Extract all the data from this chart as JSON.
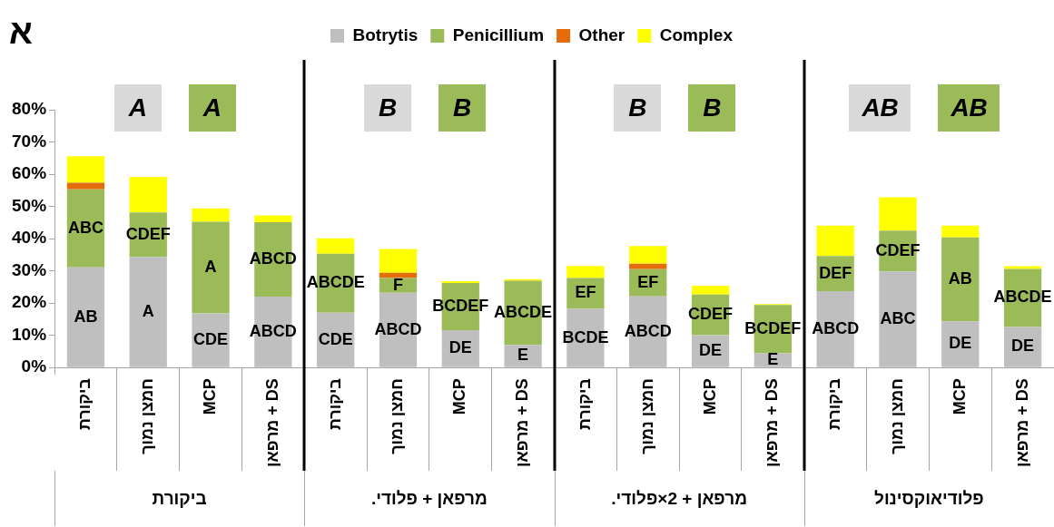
{
  "chart_data": {
    "type": "bar",
    "stacked": true,
    "title": "א",
    "categories": [
      "ביקורת",
      "חמצן נמוך",
      "MCP",
      "מרפאן + DS",
      "ביקורת",
      "חמצן נמוך",
      "MCP",
      "מרפאן + DS",
      "ביקורת",
      "חמצן נמוך",
      "MCP",
      "מרפאן + DS",
      "ביקורת",
      "חמצן נמוך",
      "MCP",
      "מרפאן + DS"
    ],
    "series": [
      {
        "name": "Botrytis",
        "color": "#bfbfbf",
        "values": [
          31.1,
          34.3,
          16.8,
          22.0,
          17.0,
          23.2,
          11.6,
          7.0,
          18.2,
          22.1,
          10.0,
          4.4,
          23.7,
          29.8,
          14.3,
          12.6
        ],
        "value_labels": [
          "AB",
          "A",
          "CDE",
          "ABCD",
          "CDE",
          "ABCD",
          "DE",
          "E",
          "BCDE",
          "ABCD",
          "DE",
          "E",
          "ABCD",
          "ABC",
          "DE",
          "DE"
        ]
      },
      {
        "name": "Penicillium",
        "color": "#9bbb59",
        "values": [
          24.2,
          13.8,
          28.4,
          23.1,
          18.3,
          4.6,
          14.6,
          19.9,
          9.6,
          8.4,
          12.6,
          15.0,
          10.9,
          12.7,
          26.1,
          18.0
        ],
        "value_labels": [
          "ABC",
          "CDEF",
          "A",
          "ABCD",
          "ABCDE",
          "F",
          "BCDEF",
          "ABCDE",
          "EF",
          "EF",
          "CDEF",
          "BCDEF",
          "DEF",
          "CDEF",
          "AB",
          "ABCDE"
        ]
      },
      {
        "name": "Other",
        "color": "#e46c0a",
        "values": [
          2.0,
          null,
          null,
          null,
          null,
          1.6,
          null,
          null,
          null,
          1.7,
          null,
          null,
          null,
          null,
          null,
          null
        ]
      },
      {
        "name": "Complex",
        "color": "#ffff00",
        "values": [
          8.3,
          11.1,
          4.2,
          2.1,
          4.8,
          7.4,
          0.6,
          0.5,
          3.7,
          5.5,
          2.8,
          0.3,
          9.4,
          10.3,
          3.6,
          0.8
        ]
      }
    ],
    "ylim": [
      0,
      80
    ],
    "yticks": [
      {
        "value": 0,
        "label": "0%"
      },
      {
        "value": 10,
        "label": "10%"
      },
      {
        "value": 20,
        "label": "20%"
      },
      {
        "value": 30,
        "label": "30%"
      },
      {
        "value": 40,
        "label": "40%"
      },
      {
        "value": 50,
        "label": "50%"
      },
      {
        "value": 60,
        "label": "60%"
      },
      {
        "value": 70,
        "label": "70%"
      },
      {
        "value": 80,
        "label": "80%"
      }
    ],
    "grid": false,
    "legend": "top",
    "annotations": [
      "ביקורת",
      "A",
      "A",
      "מרפאן + פלודי.",
      "B",
      "B",
      "מרפאן + 2×פלודי.",
      "B",
      "B",
      "פלודיאוקסינול",
      "AB",
      "AB"
    ]
  }
}
